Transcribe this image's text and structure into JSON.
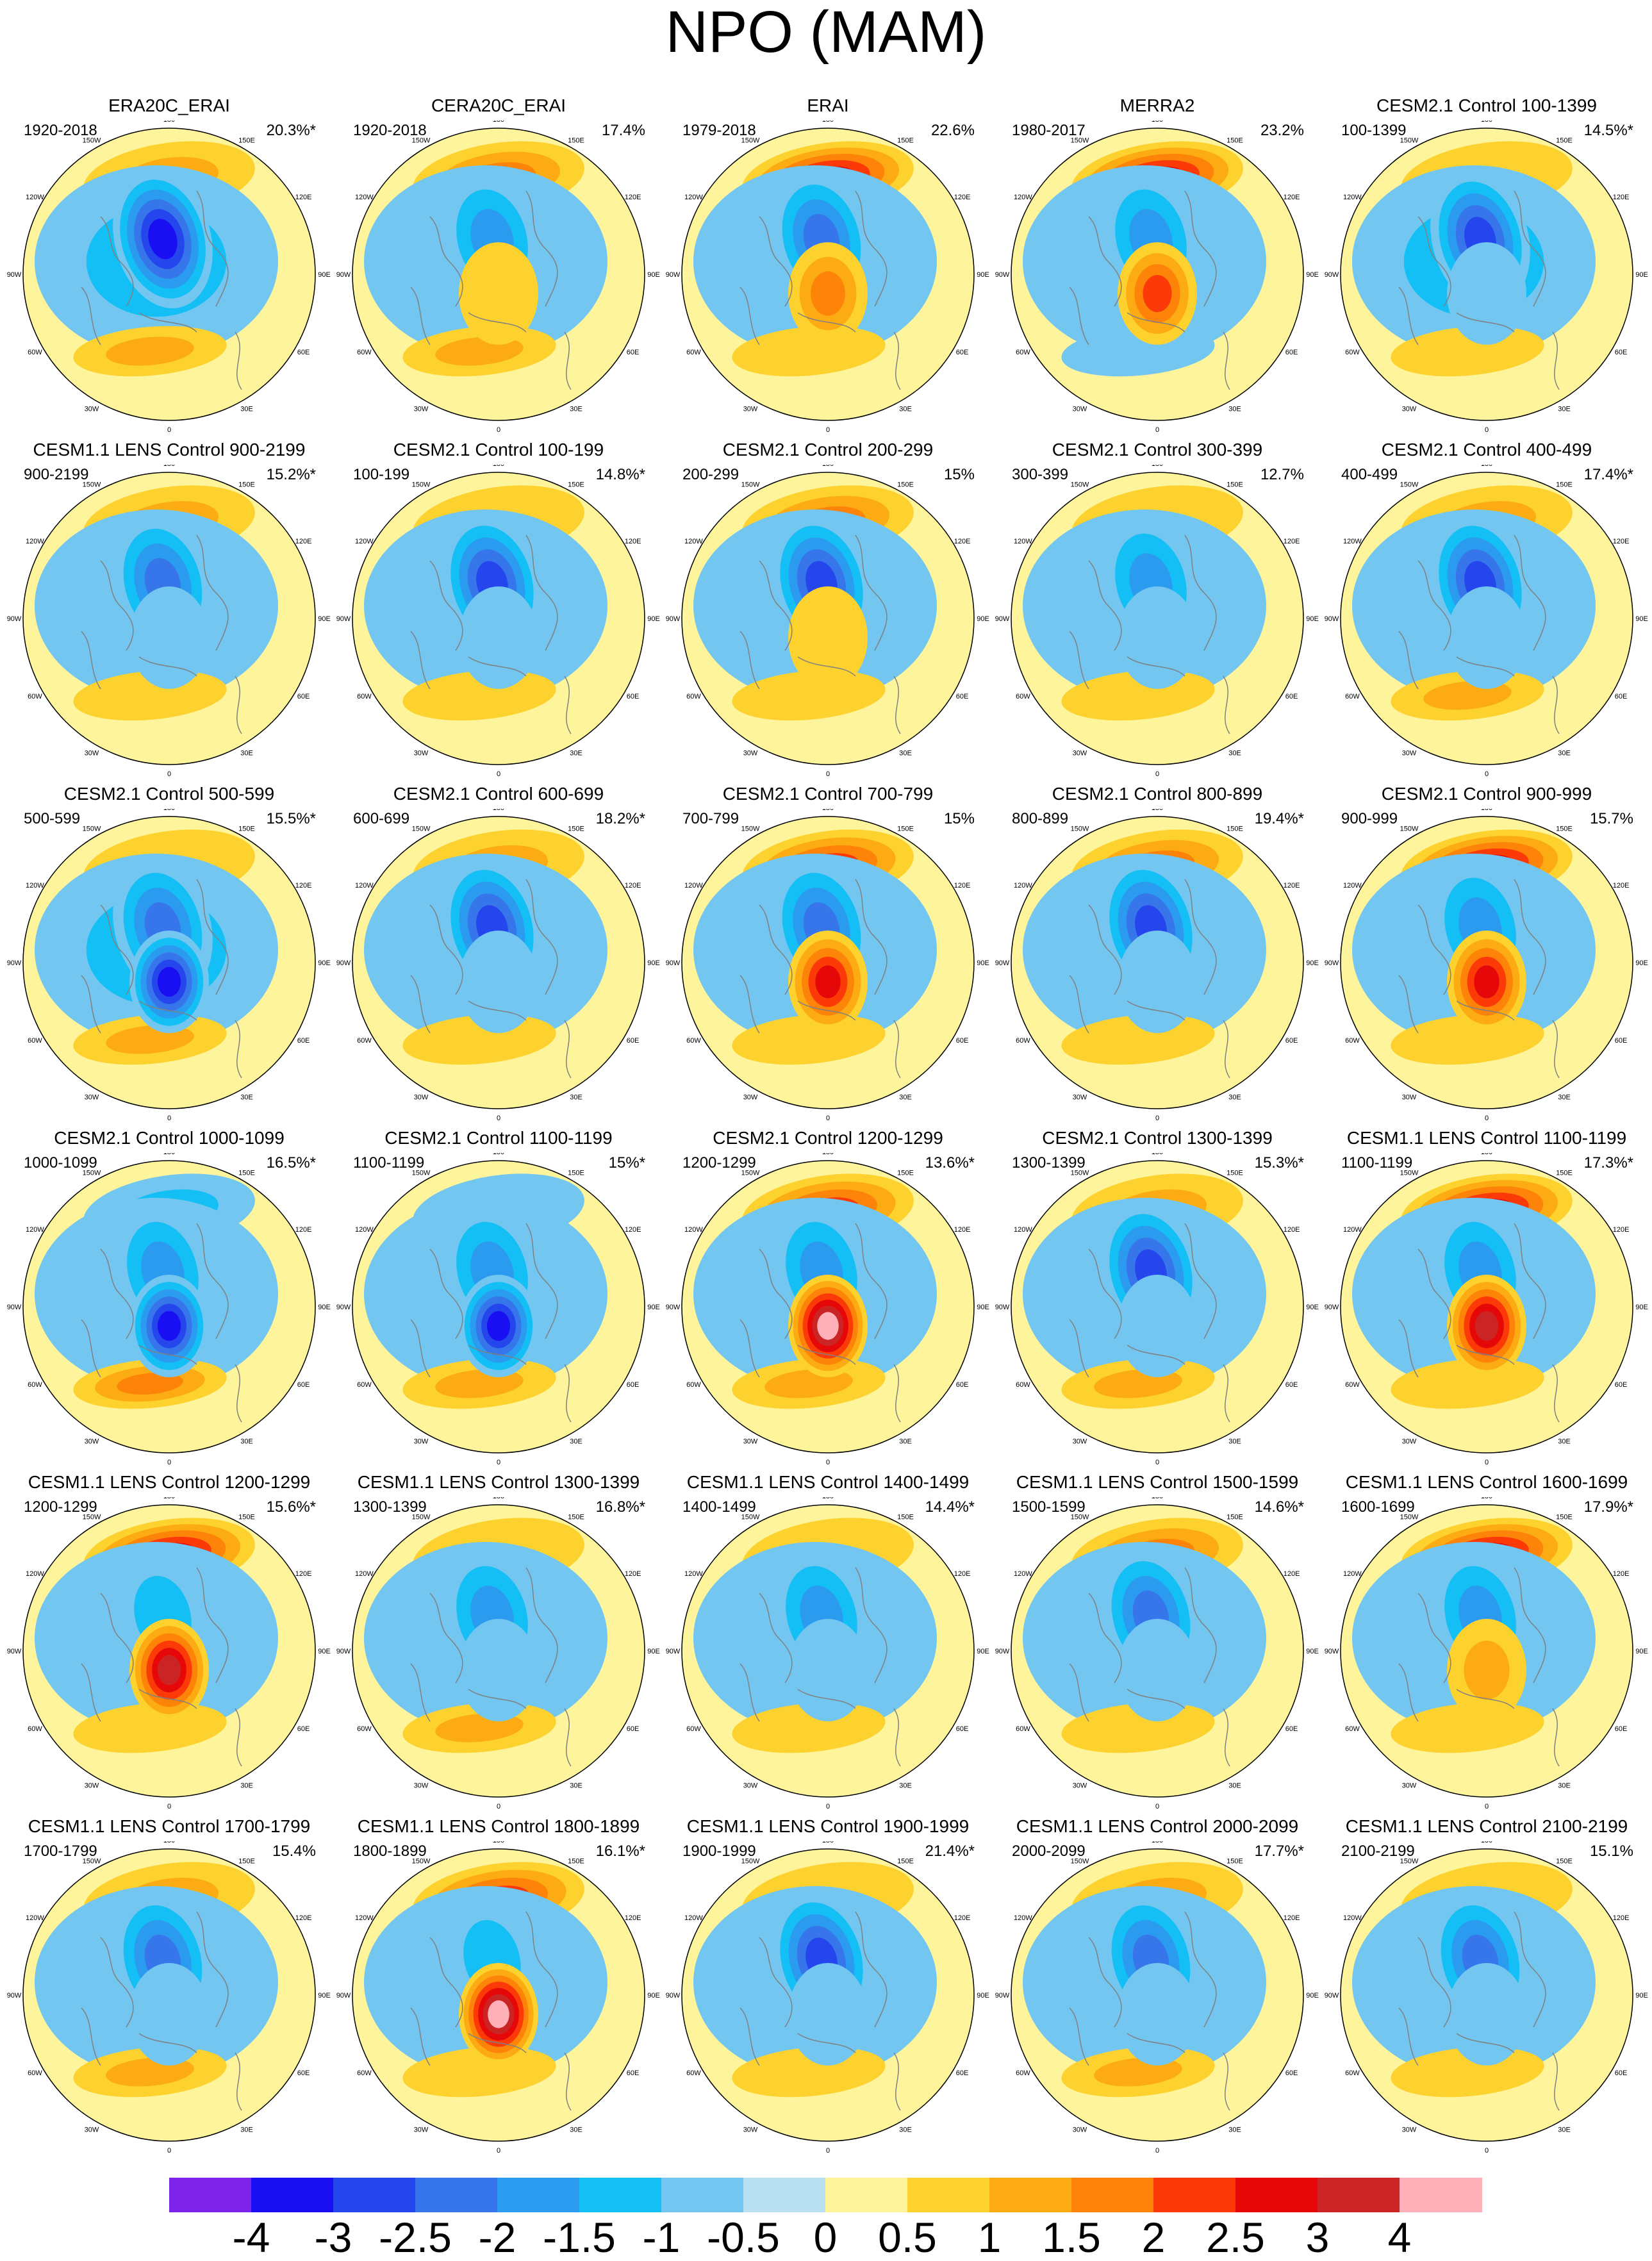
{
  "title": "NPO (MAM)",
  "panels": [
    {
      "title": "ERA20C_ERAI",
      "period": "1920-2018",
      "pct": "20.3%*",
      "pattern": [
        1,
        -1,
        -3,
        1,
        0
      ]
    },
    {
      "title": "CERA20C_ERAI",
      "period": "1920-2018",
      "pct": "17.4%",
      "pattern": [
        1.5,
        -0.5,
        -1.5,
        1,
        0.5
      ]
    },
    {
      "title": "ERAI",
      "period": "1979-2018",
      "pct": "22.6%",
      "pattern": [
        2.5,
        -0.5,
        -2,
        0.5,
        1.5
      ]
    },
    {
      "title": "MERRA2",
      "period": "1980-2017",
      "pct": "23.2%",
      "pattern": [
        2.5,
        -0.5,
        -1.5,
        -0.5,
        2
      ]
    },
    {
      "title": "CESM2.1 Control 100-1399",
      "period": "100-1399",
      "pct": "14.5%*",
      "pattern": [
        0.5,
        -1,
        -2.5,
        0.5,
        -0.5
      ]
    },
    {
      "title": "CESM1.1 LENS Control 900-2199",
      "period": "900-2199",
      "pct": "15.2%*",
      "pattern": [
        1,
        -0.5,
        -2,
        0.5,
        -0.5
      ]
    },
    {
      "title": "CESM2.1 Control 100-199",
      "period": "100-199",
      "pct": "14.8%*",
      "pattern": [
        0.5,
        -0.5,
        -2.5,
        0.5,
        -0.5
      ]
    },
    {
      "title": "CESM2.1 Control 200-299",
      "period": "200-299",
      "pct": "15%",
      "pattern": [
        1.5,
        -0.5,
        -2.5,
        0.5,
        0.5
      ]
    },
    {
      "title": "CESM2.1 Control 300-399",
      "period": "300-399",
      "pct": "12.7%",
      "pattern": [
        0.5,
        -0.5,
        -1.5,
        0.5,
        -0.5
      ]
    },
    {
      "title": "CESM2.1 Control 400-499",
      "period": "400-499",
      "pct": "17.4%*",
      "pattern": [
        1,
        -0.5,
        -2.5,
        1,
        -0.5
      ]
    },
    {
      "title": "CESM2.1 Control 500-599",
      "period": "500-599",
      "pct": "15.5%*",
      "pattern": [
        0.5,
        -1,
        -2,
        1,
        -3.5
      ]
    },
    {
      "title": "CESM2.1 Control 600-699",
      "period": "600-699",
      "pct": "18.2%*",
      "pattern": [
        1,
        -0.5,
        -2.5,
        0.5,
        -0.5
      ]
    },
    {
      "title": "CESM2.1 Control 700-799",
      "period": "700-799",
      "pct": "15%",
      "pattern": [
        2,
        -0.5,
        -2,
        0.5,
        2.5
      ]
    },
    {
      "title": "CESM2.1 Control 800-899",
      "period": "800-899",
      "pct": "19.4%*",
      "pattern": [
        1.5,
        -0.5,
        -2.5,
        0.5,
        -0.5
      ]
    },
    {
      "title": "CESM2.1 Control 900-999",
      "period": "900-999",
      "pct": "15.7%",
      "pattern": [
        2.5,
        -0.5,
        -1.5,
        0.5,
        2.5
      ]
    },
    {
      "title": "CESM2.1 Control 1000-1099",
      "period": "1000-1099",
      "pct": "16.5%*",
      "pattern": [
        -1,
        -0.5,
        -1.5,
        1.5,
        -3.5
      ]
    },
    {
      "title": "CESM2.1 Control 1100-1199",
      "period": "1100-1199",
      "pct": "15%*",
      "pattern": [
        -0.5,
        -0.5,
        -1.5,
        1,
        -3.5
      ]
    },
    {
      "title": "CESM2.1 Control 1200-1299",
      "period": "1200-1299",
      "pct": "13.6%*",
      "pattern": [
        2,
        -0.5,
        -1.5,
        1,
        4
      ]
    },
    {
      "title": "CESM2.1 Control 1300-1399",
      "period": "1300-1399",
      "pct": "15.3%*",
      "pattern": [
        1,
        -0.5,
        -2.5,
        1,
        -0.5
      ]
    },
    {
      "title": "CESM1.1 LENS Control 1100-1199",
      "period": "1100-1199",
      "pct": "17.3%*",
      "pattern": [
        2.5,
        -0.5,
        -1.5,
        0.5,
        3
      ]
    },
    {
      "title": "CESM1.1 LENS Control 1200-1299",
      "period": "1200-1299",
      "pct": "15.6%*",
      "pattern": [
        2.5,
        -0.5,
        -1,
        0.5,
        3
      ]
    },
    {
      "title": "CESM1.1 LENS Control 1300-1399",
      "period": "1300-1399",
      "pct": "16.8%*",
      "pattern": [
        0.5,
        -0.5,
        -1.5,
        1,
        -0.5
      ]
    },
    {
      "title": "CESM1.1 LENS Control 1400-1499",
      "period": "1400-1499",
      "pct": "14.4%*",
      "pattern": [
        0.5,
        -0.5,
        -1.5,
        0.5,
        -0.5
      ]
    },
    {
      "title": "CESM1.1 LENS Control 1500-1599",
      "period": "1500-1599",
      "pct": "14.6%*",
      "pattern": [
        1.5,
        -0.5,
        -2,
        0.5,
        -0.5
      ]
    },
    {
      "title": "CESM1.1 LENS Control 1600-1699",
      "period": "1600-1699",
      "pct": "17.9%*",
      "pattern": [
        2.5,
        -0.5,
        -1.5,
        0.5,
        1
      ]
    },
    {
      "title": "CESM1.1 LENS Control 1700-1799",
      "period": "1700-1799",
      "pct": "15.4%",
      "pattern": [
        1,
        -0.5,
        -2,
        1,
        -0.5
      ]
    },
    {
      "title": "CESM1.1 LENS Control 1800-1899",
      "period": "1800-1899",
      "pct": "16.1%*",
      "pattern": [
        2,
        -0.5,
        -1,
        0.5,
        4
      ]
    },
    {
      "title": "CESM1.1 LENS Control 1900-1999",
      "period": "1900-1999",
      "pct": "21.4%*",
      "pattern": [
        0.5,
        -0.5,
        -2.5,
        0.5,
        -0.5
      ]
    },
    {
      "title": "CESM1.1 LENS Control 2000-2099",
      "period": "2000-2099",
      "pct": "17.7%*",
      "pattern": [
        1,
        -0.5,
        -2,
        1,
        -0.5
      ]
    },
    {
      "title": "CESM1.1 LENS Control 2100-2199",
      "period": "2100-2199",
      "pct": "15.1%",
      "pattern": [
        0.5,
        -0.5,
        -2,
        0.5,
        -0.5
      ]
    }
  ],
  "longitude_labels": [
    "180",
    "150E",
    "120E",
    "90E",
    "60E",
    "30E",
    "0",
    "30W",
    "60W",
    "90W",
    "120W",
    "150W"
  ],
  "colorbar": {
    "levels": [
      "-4",
      "-3",
      "-2.5",
      "-2",
      "-1.5",
      "-1",
      "-0.5",
      "0",
      "0.5",
      "1",
      "1.5",
      "2",
      "2.5",
      "3",
      "4"
    ],
    "colors": [
      "#7e23ea",
      "#1a0ff2",
      "#2446ec",
      "#3676ea",
      "#2b9bf0",
      "#13bff4",
      "#72c6f0",
      "#b8dff2",
      "#fef49c",
      "#fdd22e",
      "#fdab12",
      "#fd8408",
      "#fc3a08",
      "#e60808",
      "#cb2424",
      "#ffb0b8"
    ]
  }
}
